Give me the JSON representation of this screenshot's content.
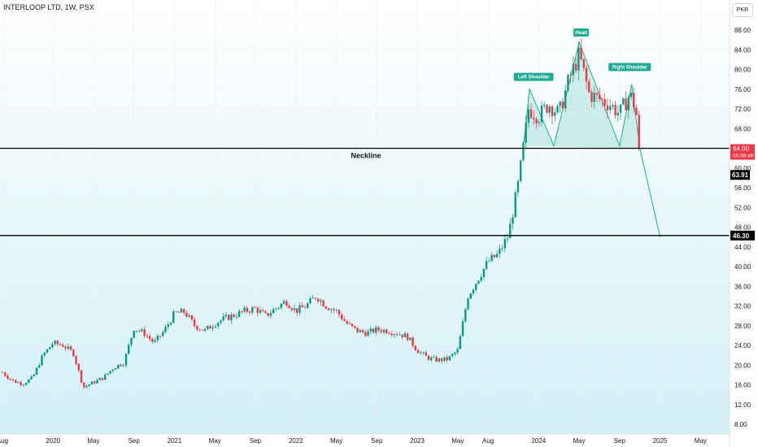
{
  "header": {
    "title": "INTERLOOP LTD, 1W, PSX",
    "currency": "PKR"
  },
  "colors": {
    "up": "#089981",
    "down": "#f23645",
    "pattern": "#22ab94",
    "bg_top": "#ffffff",
    "bg_bottom": "#d2f0f6",
    "neck": "#000000"
  },
  "chart_data": {
    "type": "candlestick",
    "title": "INTERLOOP LTD, 1W, PSX",
    "ylim": [
      6,
      90
    ],
    "y_ticks": [
      "8.00",
      "12.00",
      "16.00",
      "20.00",
      "24.00",
      "28.00",
      "32.00",
      "36.00",
      "40.00",
      "44.00",
      "48.00",
      "52.00",
      "56.00",
      "60.00",
      "64.00",
      "68.00",
      "72.00",
      "76.00",
      "80.00",
      "84.00",
      "88.00"
    ],
    "x_ticks": [
      {
        "label": "Aug",
        "t": 0
      },
      {
        "label": "2020",
        "t": 5
      },
      {
        "label": "May",
        "t": 9
      },
      {
        "label": "Sep",
        "t": 13
      },
      {
        "label": "2021",
        "t": 17
      },
      {
        "label": "May",
        "t": 21
      },
      {
        "label": "Sep",
        "t": 25
      },
      {
        "label": "2022",
        "t": 29
      },
      {
        "label": "May",
        "t": 33
      },
      {
        "label": "Sep",
        "t": 37
      },
      {
        "label": "2023",
        "t": 41
      },
      {
        "label": "May",
        "t": 45
      },
      {
        "label": "Aug",
        "t": 48
      },
      {
        "label": "2024",
        "t": 53
      },
      {
        "label": "May",
        "t": 57
      },
      {
        "label": "Sep",
        "t": 61
      },
      {
        "label": "2025",
        "t": 65
      },
      {
        "label": "May",
        "t": 69
      }
    ],
    "levels": [
      {
        "price": 64.0,
        "label": "Neckline",
        "tag": "64.00",
        "timer": "05:58:46"
      },
      {
        "price": 46.3,
        "tag": "46.30"
      }
    ],
    "last_price": {
      "value": 63.91,
      "label": "63.91"
    },
    "annotations": [
      {
        "text": "Left Shoulder",
        "t": 52.5,
        "price": 78.5
      },
      {
        "text": "Head",
        "t": 57.2,
        "price": 87.5
      },
      {
        "text": "Right Shoulder",
        "t": 62,
        "price": 80.5
      }
    ],
    "pattern_path": [
      [
        51.5,
        64.5
      ],
      [
        52.1,
        76.0
      ],
      [
        54.5,
        64.5
      ],
      [
        57.0,
        85.5
      ],
      [
        61.0,
        64.5
      ],
      [
        62.2,
        77.0
      ],
      [
        63.0,
        64.0
      ],
      [
        65.0,
        46.0
      ]
    ],
    "price_path": [
      [
        0,
        18.5
      ],
      [
        1,
        16.8
      ],
      [
        2,
        16.2
      ],
      [
        3,
        17.5
      ],
      [
        4,
        22
      ],
      [
        5,
        24.5
      ],
      [
        6,
        24
      ],
      [
        7,
        22.5
      ],
      [
        8,
        15.5
      ],
      [
        9,
        16.5
      ],
      [
        10,
        17.5
      ],
      [
        11,
        19.5
      ],
      [
        12,
        20.5
      ],
      [
        13,
        27.5
      ],
      [
        14,
        26.5
      ],
      [
        15,
        24.5
      ],
      [
        16,
        27
      ],
      [
        17,
        30.5
      ],
      [
        18,
        30.8
      ],
      [
        19,
        28
      ],
      [
        20,
        27
      ],
      [
        21,
        28.5
      ],
      [
        22,
        29.5
      ],
      [
        23,
        30.2
      ],
      [
        24,
        31
      ],
      [
        25,
        31.5
      ],
      [
        26,
        30
      ],
      [
        27,
        31.5
      ],
      [
        28,
        33
      ],
      [
        29,
        31
      ],
      [
        30,
        32
      ],
      [
        31,
        34
      ],
      [
        32,
        32
      ],
      [
        33,
        31
      ],
      [
        34,
        28.5
      ],
      [
        35,
        27
      ],
      [
        36,
        26.5
      ],
      [
        37,
        27.2
      ],
      [
        38,
        27
      ],
      [
        39,
        26.5
      ],
      [
        40,
        25.8
      ],
      [
        41,
        23
      ],
      [
        42,
        21.5
      ],
      [
        43,
        21
      ],
      [
        44,
        21.2
      ],
      [
        45,
        23
      ],
      [
        46,
        34
      ],
      [
        47,
        37.5
      ],
      [
        48,
        41
      ],
      [
        49,
        42.5
      ],
      [
        50,
        46.3
      ],
      [
        51,
        57
      ],
      [
        52,
        72
      ],
      [
        53,
        70.5
      ],
      [
        54,
        73
      ],
      [
        55,
        71
      ],
      [
        56,
        78
      ],
      [
        57,
        83
      ],
      [
        58,
        75
      ],
      [
        59,
        74
      ],
      [
        60,
        73
      ],
      [
        61,
        71
      ],
      [
        62,
        75
      ],
      [
        62.6,
        72
      ],
      [
        63,
        64
      ]
    ]
  }
}
